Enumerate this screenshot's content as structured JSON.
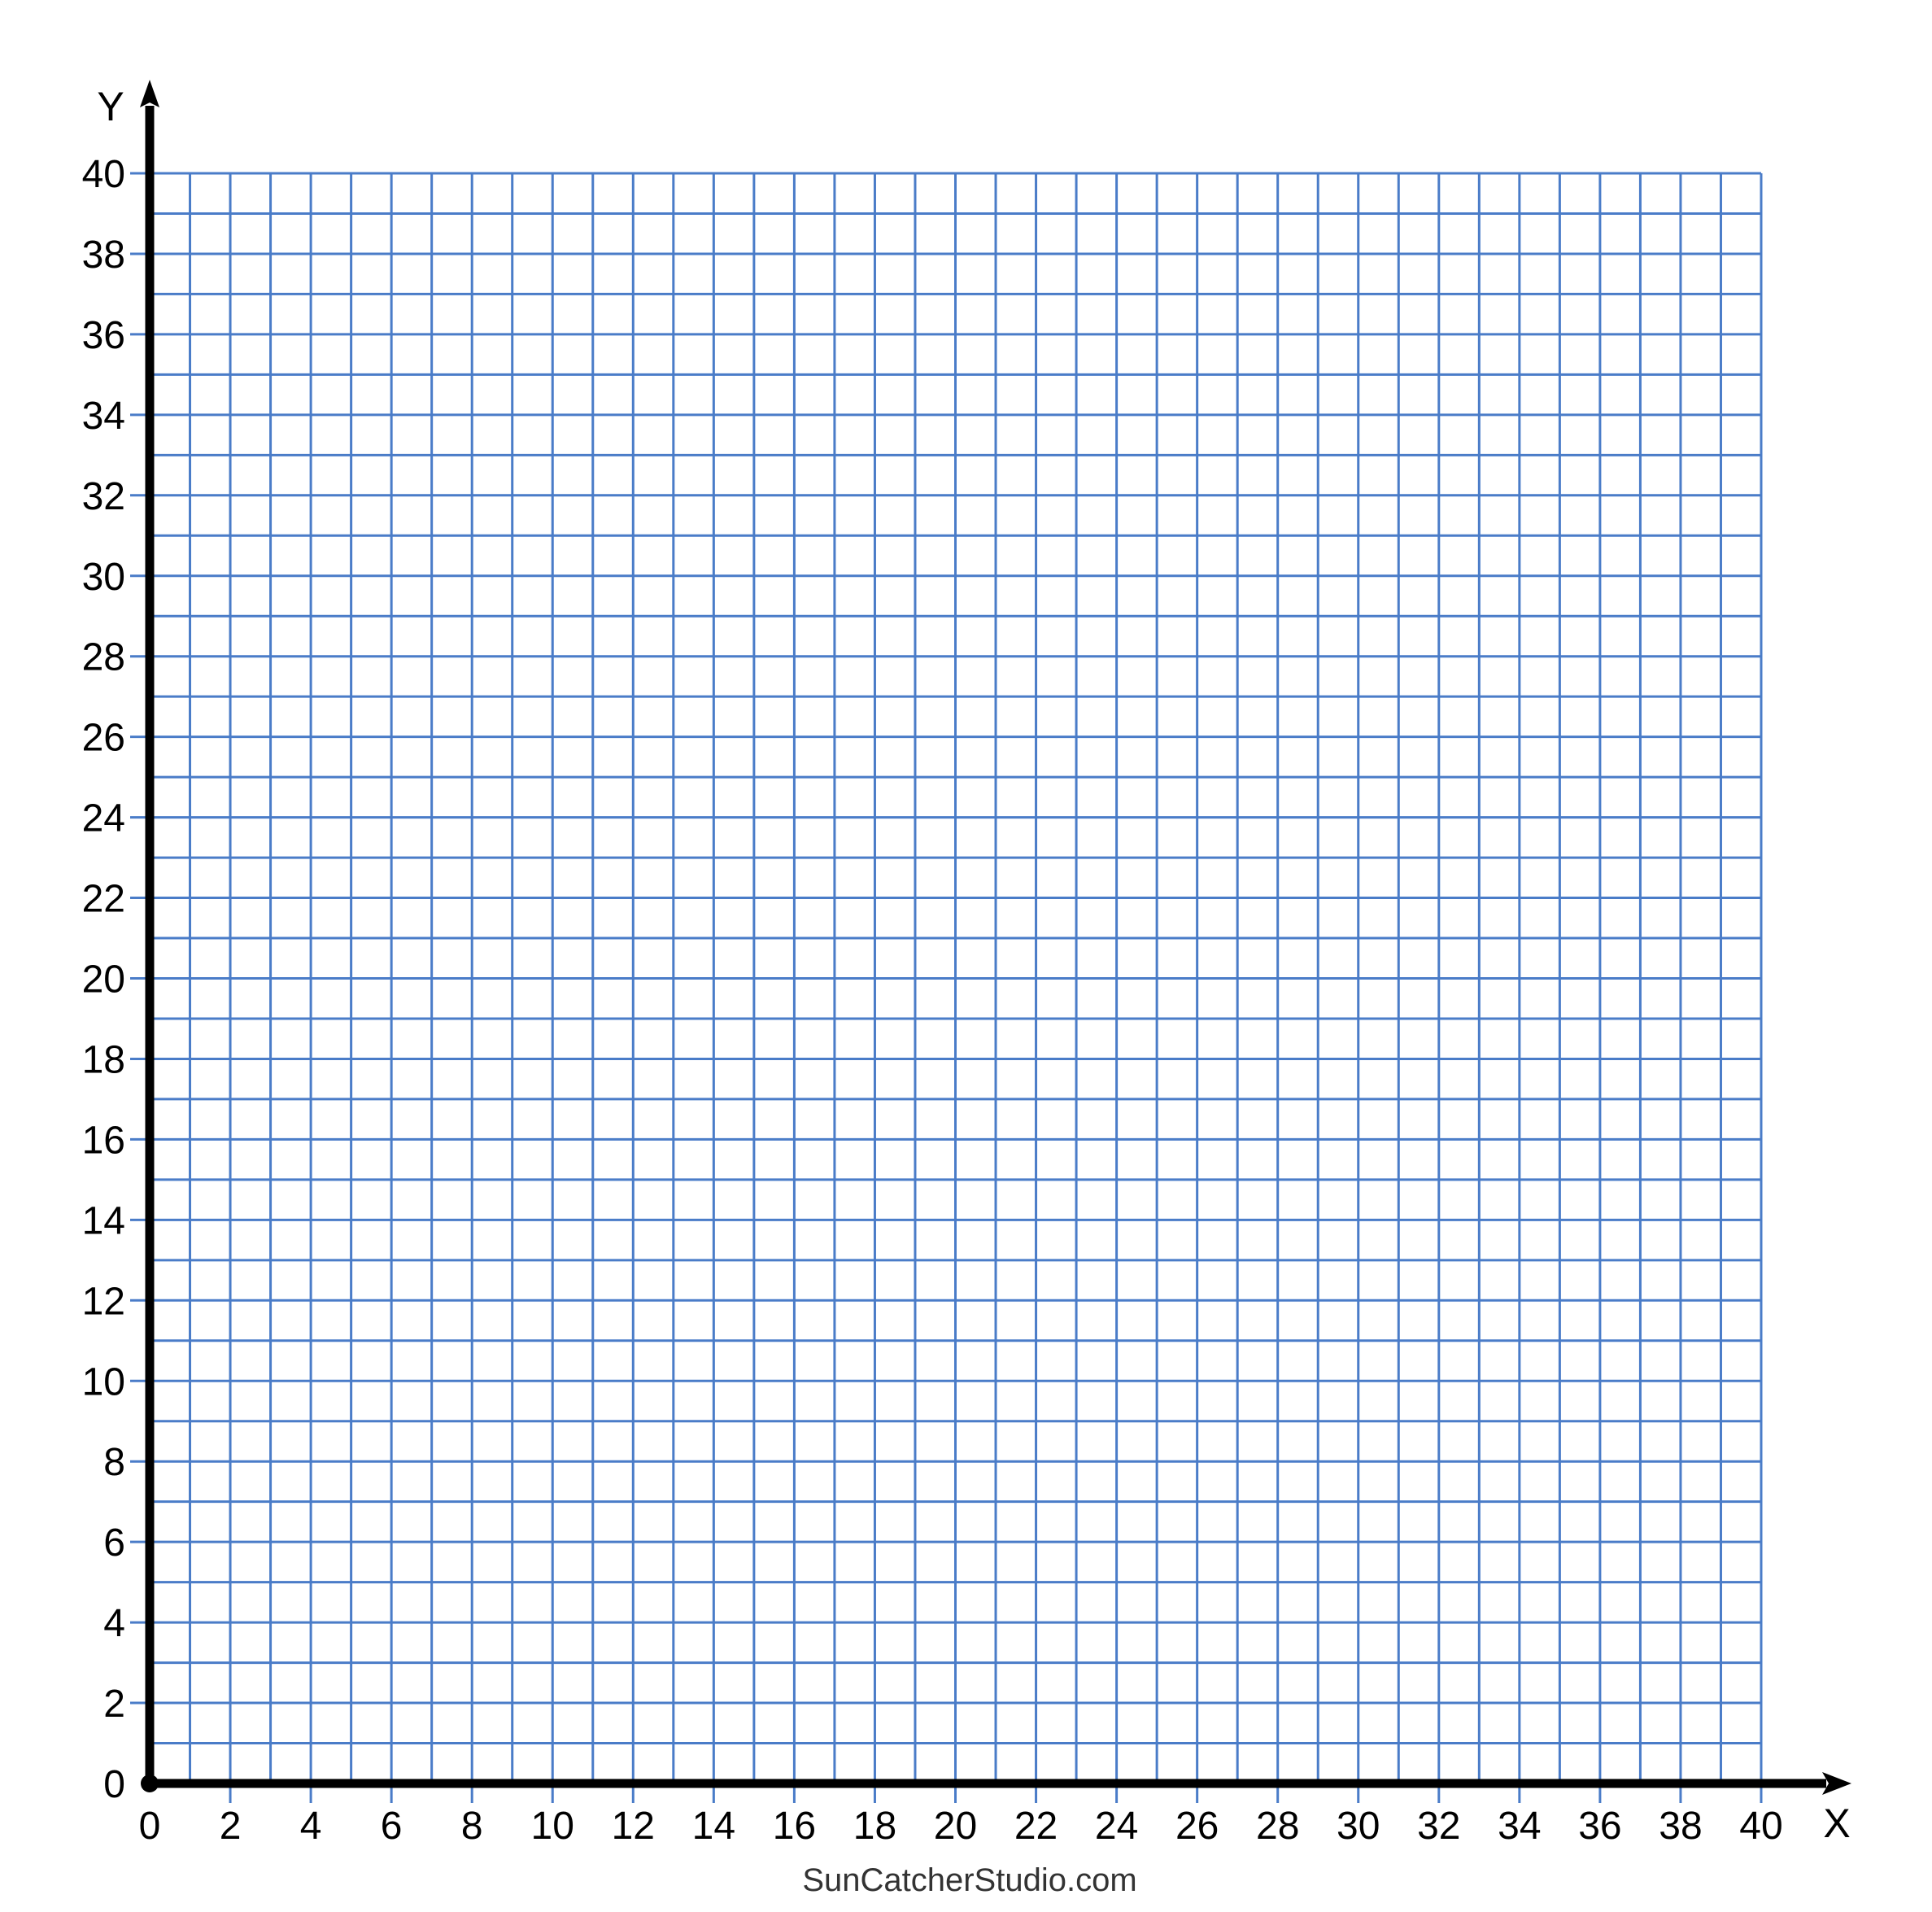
{
  "chart_data": {
    "type": "scatter",
    "title": "",
    "xlabel": "X",
    "ylabel": "Y",
    "xlim": [
      0,
      40
    ],
    "ylim": [
      0,
      40
    ],
    "x_ticks": [
      "0",
      "2",
      "4",
      "6",
      "8",
      "10",
      "12",
      "14",
      "16",
      "18",
      "20",
      "22",
      "24",
      "26",
      "28",
      "30",
      "32",
      "34",
      "36",
      "38",
      "40"
    ],
    "y_ticks": [
      "0",
      "2",
      "4",
      "6",
      "8",
      "10",
      "12",
      "14",
      "16",
      "18",
      "20",
      "22",
      "24",
      "26",
      "28",
      "30",
      "32",
      "34",
      "36",
      "38",
      "40"
    ],
    "grid": true,
    "grid_step": 1,
    "grid_color": "#4a7cc8",
    "axis_color": "#000000",
    "origin_marker": true,
    "series": []
  },
  "footer": "SunCatcherStudio.com"
}
